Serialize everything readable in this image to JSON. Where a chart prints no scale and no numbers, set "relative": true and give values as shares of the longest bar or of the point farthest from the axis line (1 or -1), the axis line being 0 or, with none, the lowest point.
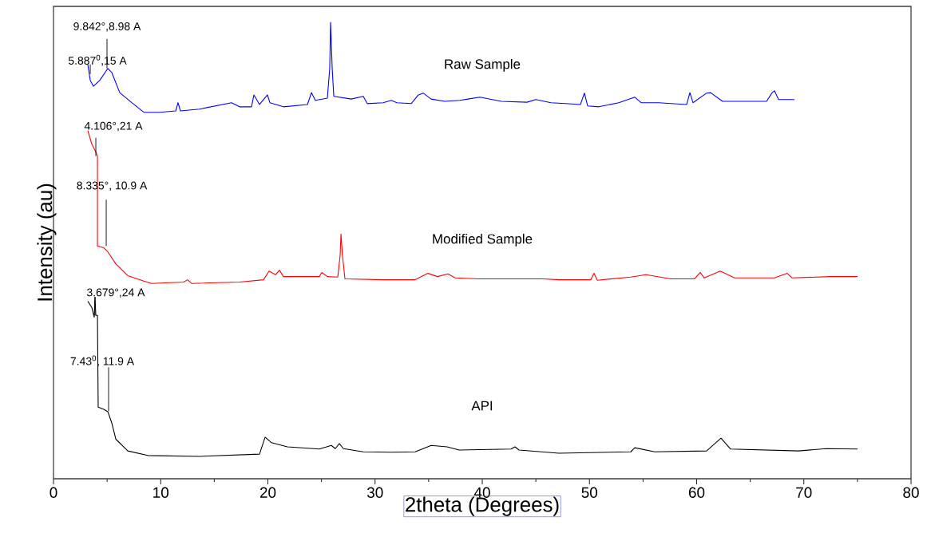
{
  "chart_data": {
    "type": "line",
    "relative": true,
    "xlabel": "2theta (Degrees)",
    "ylabel": "Intensity (au)",
    "xlim": [
      0,
      80
    ],
    "xticks": [
      0,
      10,
      20,
      30,
      40,
      50,
      60,
      70,
      80
    ],
    "series": [
      {
        "name": "Raw Sample",
        "color": "#0000ff",
        "x": [
          3.2,
          3.43,
          3.72,
          4.32,
          5.07,
          5.44,
          6.18,
          7.3,
          8.42,
          9.91,
          11.4,
          11.62,
          11.84,
          13.63,
          16.61,
          17.36,
          18.47,
          18.7,
          19.22,
          19.96,
          20.19,
          21.45,
          23.69,
          24.06,
          24.43,
          25.55,
          25.77,
          25.85,
          26.0,
          26.15,
          27.78,
          28.9,
          29.27,
          30.76,
          31.51,
          32.03,
          33.37,
          34.04,
          34.49,
          35.23,
          36.5,
          37.91,
          38.66,
          39.78,
          41.79,
          44.17,
          44.99,
          46.41,
          47.75,
          49.16,
          49.53,
          49.83,
          50.88,
          52.74,
          54.23,
          54.82,
          56.46,
          59.07,
          59.37,
          59.66,
          60.93,
          61.3,
          62.42,
          66.52,
          67.04,
          67.26,
          67.64,
          69.12
        ],
        "values": [
          0.908,
          0.873,
          0.86,
          0.873,
          0.899,
          0.89,
          0.846,
          0.824,
          0.803,
          0.803,
          0.806,
          0.824,
          0.806,
          0.81,
          0.824,
          0.815,
          0.815,
          0.841,
          0.82,
          0.841,
          0.824,
          0.815,
          0.82,
          0.846,
          0.829,
          0.834,
          0.899,
          1.0,
          0.899,
          0.838,
          0.832,
          0.838,
          0.822,
          0.824,
          0.829,
          0.824,
          0.822,
          0.841,
          0.845,
          0.832,
          0.827,
          0.829,
          0.832,
          0.836,
          0.827,
          0.825,
          0.831,
          0.824,
          0.822,
          0.82,
          0.845,
          0.817,
          0.815,
          0.824,
          0.836,
          0.824,
          0.824,
          0.82,
          0.846,
          0.824,
          0.845,
          0.846,
          0.827,
          0.827,
          0.846,
          0.85,
          0.831,
          0.831
        ]
      },
      {
        "name": "Modified Sample",
        "color": "#ff0000",
        "x": [
          3.2,
          3.58,
          3.95,
          4.1,
          4.1,
          4.69,
          5.07,
          5.81,
          6.93,
          8.42,
          9.16,
          12.14,
          12.51,
          12.89,
          17.36,
          19.59,
          20.11,
          20.71,
          21.08,
          21.45,
          24.8,
          25.03,
          25.55,
          26.52,
          26.74,
          26.82,
          26.96,
          27.19,
          30.76,
          33.74,
          34.93,
          35.83,
          36.8,
          37.47,
          39.7,
          42.68,
          45.66,
          47.15,
          50.13,
          50.43,
          50.73,
          53.85,
          55.27,
          57.58,
          59.81,
          60.34,
          60.71,
          62.2,
          63.54,
          67.26,
          68.45,
          68.9,
          72.48,
          75.01
        ],
        "values": [
          0.763,
          0.733,
          0.716,
          0.707,
          0.51,
          0.506,
          0.497,
          0.471,
          0.445,
          0.433,
          0.428,
          0.431,
          0.436,
          0.428,
          0.431,
          0.436,
          0.455,
          0.447,
          0.457,
          0.443,
          0.443,
          0.452,
          0.443,
          0.442,
          0.489,
          0.536,
          0.489,
          0.438,
          0.436,
          0.436,
          0.45,
          0.443,
          0.449,
          0.44,
          0.438,
          0.438,
          0.438,
          0.436,
          0.436,
          0.45,
          0.435,
          0.442,
          0.447,
          0.438,
          0.438,
          0.452,
          0.44,
          0.455,
          0.44,
          0.44,
          0.45,
          0.44,
          0.443,
          0.443
        ]
      },
      {
        "name": "API",
        "color": "#000000",
        "x": [
          3.2,
          3.58,
          3.8,
          3.87,
          3.95,
          4.1,
          4.17,
          4.69,
          5.07,
          5.44,
          5.81,
          6.93,
          8.79,
          13.63,
          19.22,
          19.74,
          20.34,
          21.82,
          24.8,
          25.92,
          26.29,
          26.67,
          27.04,
          28.9,
          31.51,
          33.74,
          35.23,
          36.72,
          37.84,
          42.68,
          43.05,
          43.43,
          47.15,
          53.85,
          54.23,
          56.09,
          60.93,
          62.27,
          63.17,
          69.5,
          72.11,
          75.01
        ],
        "values": [
          0.389,
          0.375,
          0.354,
          0.398,
          0.358,
          0.358,
          0.157,
          0.152,
          0.147,
          0.122,
          0.087,
          0.061,
          0.051,
          0.049,
          0.054,
          0.091,
          0.079,
          0.07,
          0.065,
          0.073,
          0.066,
          0.077,
          0.066,
          0.059,
          0.058,
          0.059,
          0.073,
          0.07,
          0.063,
          0.065,
          0.07,
          0.063,
          0.056,
          0.059,
          0.068,
          0.059,
          0.061,
          0.089,
          0.065,
          0.061,
          0.066,
          0.065
        ]
      }
    ],
    "annotations": [
      {
        "text": "9.842°,8.98 A",
        "x": 4.99,
        "y": 0.899
      },
      {
        "text": "5.887$^{0}$,15 A",
        "x": 3.43,
        "y": 0.887
      },
      {
        "text": "4.106°,21 A",
        "x": 3.95,
        "y": 0.707
      },
      {
        "text": "8.335°, 10.9 A",
        "x": 4.92,
        "y": 0.51
      },
      {
        "text": "3.679°,24 A",
        "x": 3.87,
        "y": 0.358
      },
      {
        "text": "7.43$^{0}$, 11.9 A",
        "x": 5.14,
        "y": 0.148
      }
    ]
  }
}
